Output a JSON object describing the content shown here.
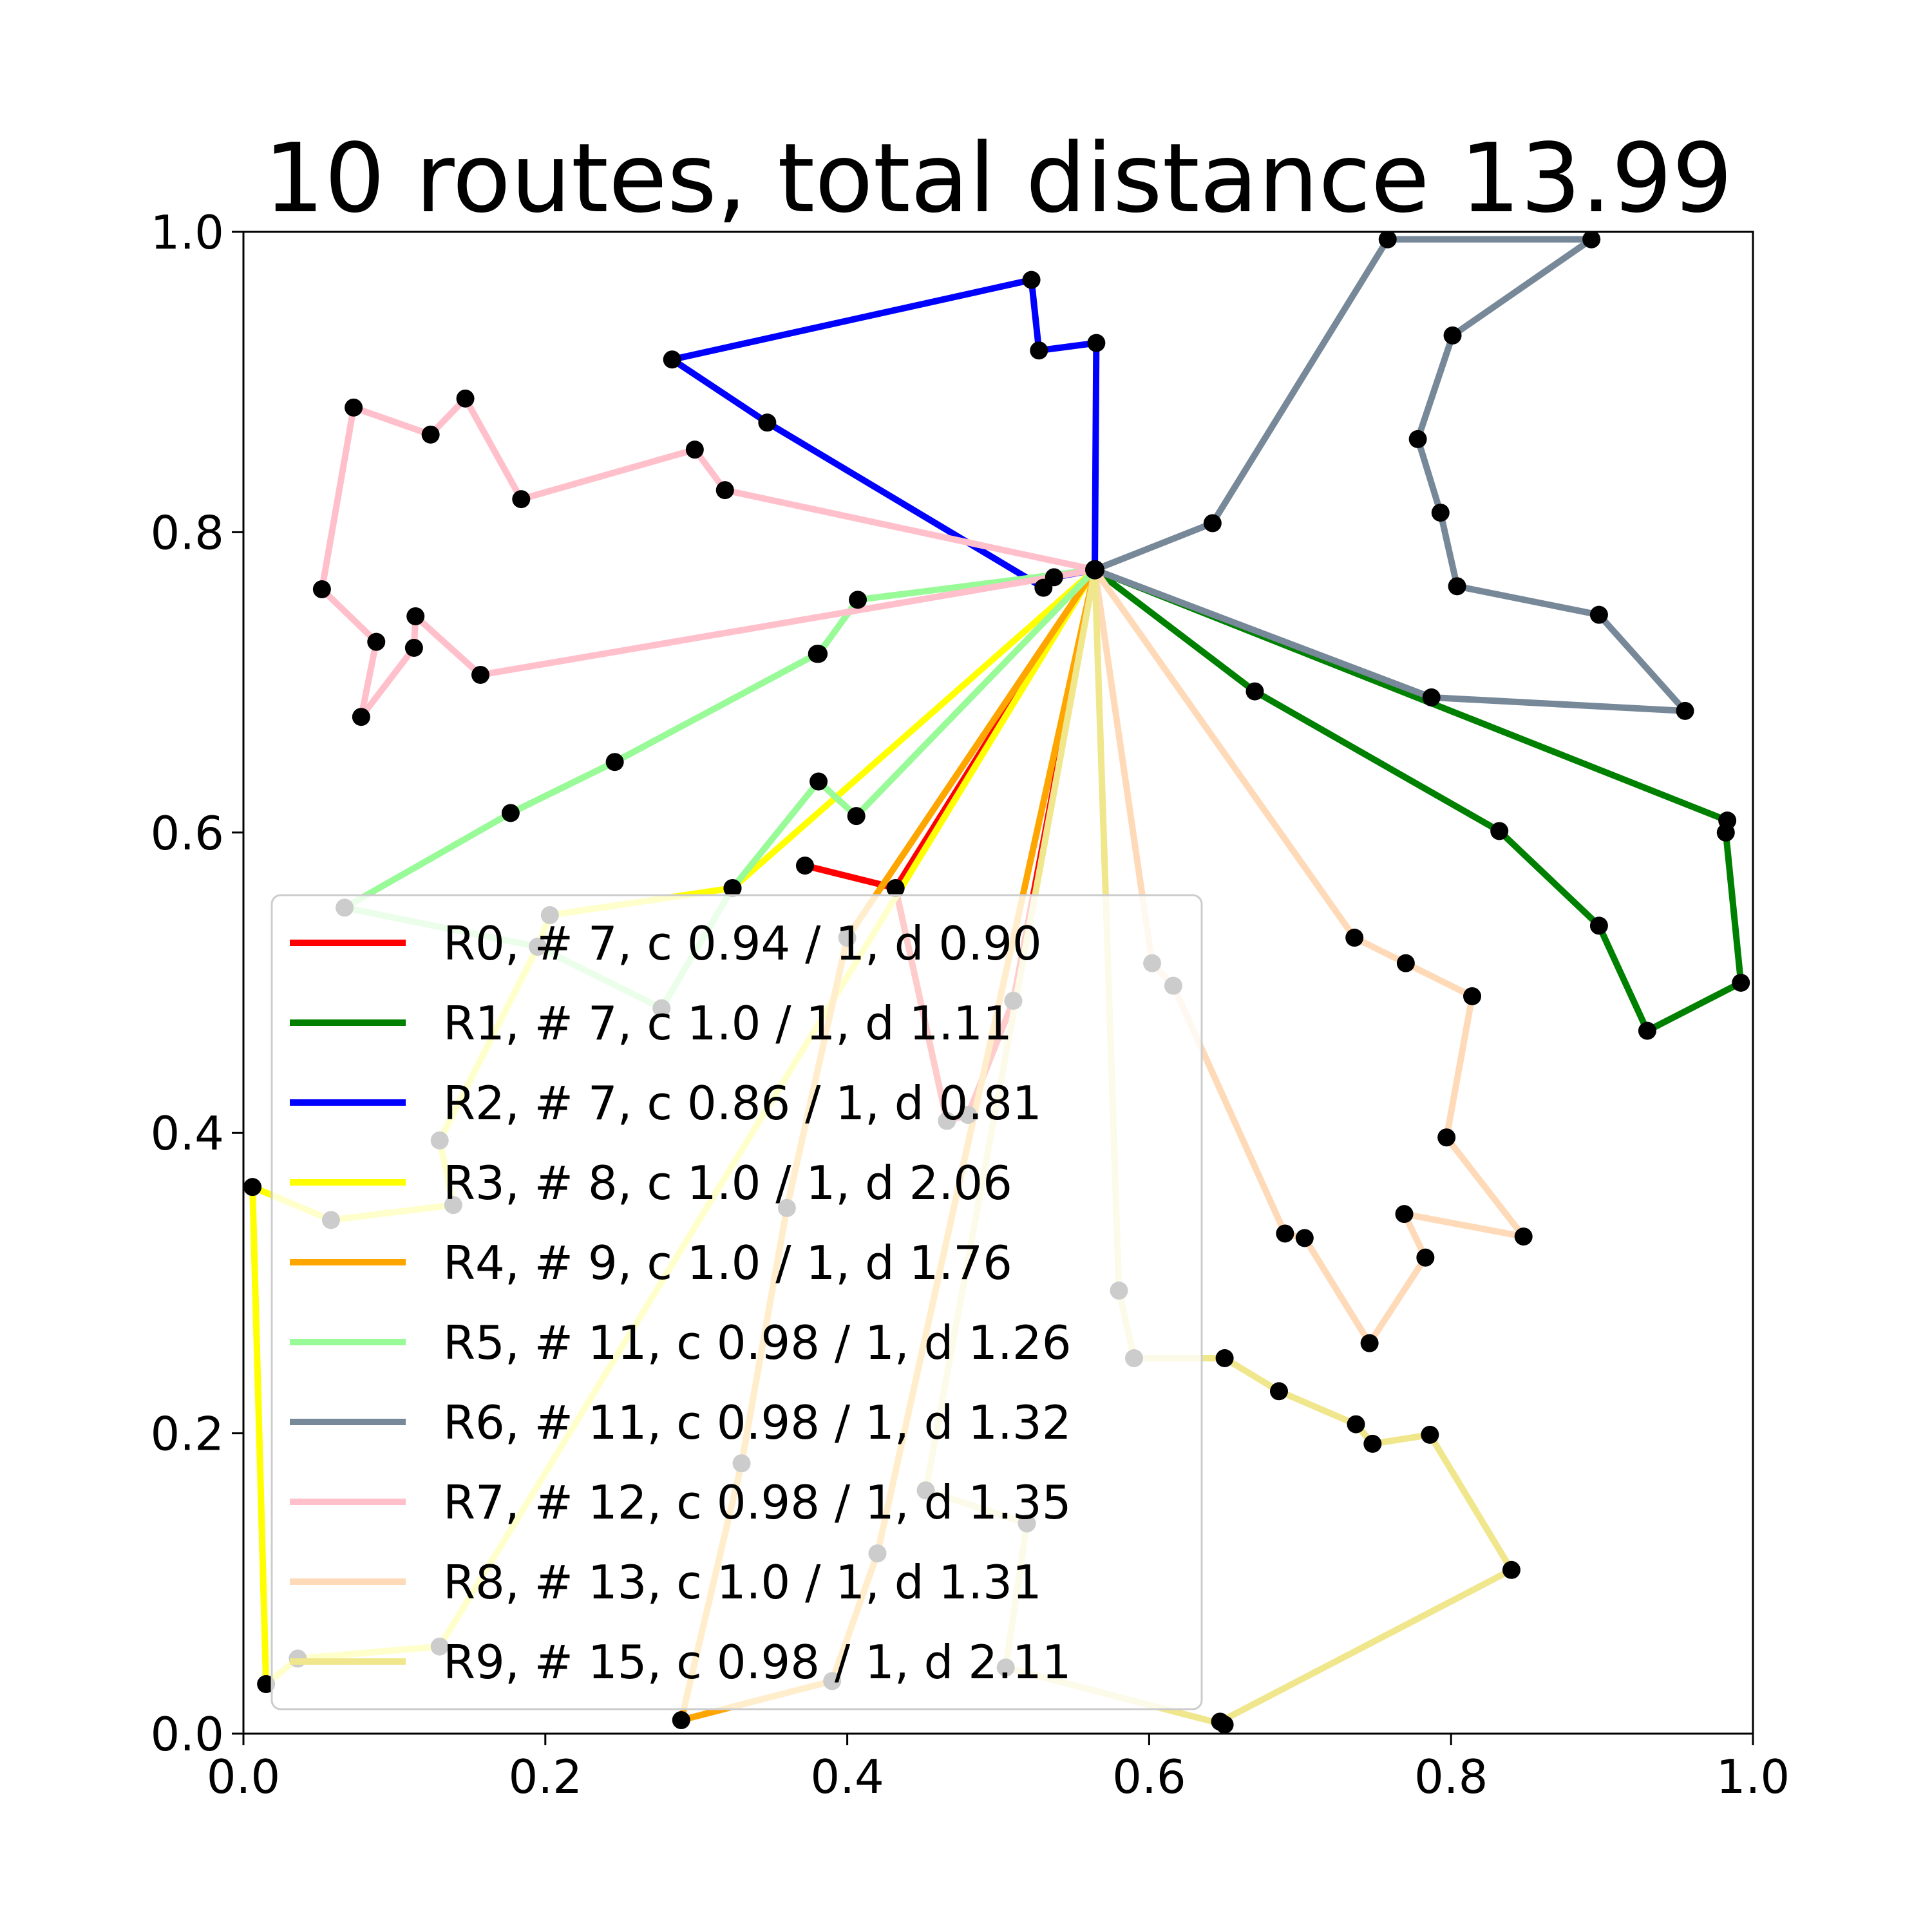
{
  "chart_data": {
    "type": "line",
    "title": "10 routes, total distance 13.99",
    "xlabel": "",
    "ylabel": "",
    "xlim": [
      0.0,
      1.0
    ],
    "ylim": [
      0.0,
      1.0
    ],
    "xticks": [
      "0.0",
      "0.2",
      "0.4",
      "0.6",
      "0.8",
      "1.0"
    ],
    "yticks": [
      "0.0",
      "0.2",
      "0.4",
      "0.6",
      "0.8",
      "1.0"
    ],
    "grid": false,
    "legend_position": "lower-left",
    "depot": [
      0.564,
      0.775
    ],
    "series": [
      {
        "name": "R0, # 7, c 0.94 / 1, d 0.90",
        "color": "#ff0000",
        "x": [
          0.564,
          0.432,
          0.372,
          0.432,
          0.466,
          0.48,
          0.51,
          0.564
        ],
        "y": [
          0.775,
          0.563,
          0.578,
          0.563,
          0.408,
          0.412,
          0.488,
          0.775
        ]
      },
      {
        "name": "R1, # 7, c 1.0 / 1, d 1.11",
        "color": "#008000",
        "x": [
          0.564,
          0.67,
          0.832,
          0.898,
          0.93,
          0.992,
          0.982,
          0.983,
          0.564
        ],
        "y": [
          0.775,
          0.694,
          0.601,
          0.538,
          0.468,
          0.5,
          0.6,
          0.608,
          0.775
        ]
      },
      {
        "name": "R2, # 7, c 0.86 / 1, d 0.81",
        "color": "#0000ff",
        "x": [
          0.564,
          0.537,
          0.53,
          0.347,
          0.284,
          0.522,
          0.527,
          0.565,
          0.564
        ],
        "y": [
          0.775,
          0.77,
          0.763,
          0.873,
          0.915,
          0.968,
          0.921,
          0.926,
          0.775
        ]
      },
      {
        "name": "R3, # 8, c 1.0 / 1, d 2.06",
        "color": "#ffff00",
        "x": [
          0.564,
          0.324,
          0.203,
          0.195,
          0.13,
          0.139,
          0.058,
          0.006,
          0.015,
          0.036,
          0.13,
          0.564
        ],
        "y": [
          0.775,
          0.563,
          0.545,
          0.524,
          0.395,
          0.352,
          0.342,
          0.364,
          0.033,
          0.05,
          0.058,
          0.775
        ]
      },
      {
        "name": "R4, # 9, c 1.0 / 1, d 1.76",
        "color": "#ffa500",
        "x": [
          0.564,
          0.4,
          0.36,
          0.33,
          0.29,
          0.39,
          0.42,
          0.564
        ],
        "y": [
          0.775,
          0.53,
          0.35,
          0.18,
          0.009,
          0.035,
          0.12,
          0.775
        ]
      },
      {
        "name": "R5, # 11, c 0.98 / 1, d 1.26",
        "color": "#98fb98",
        "x": [
          0.564,
          0.407,
          0.381,
          0.38,
          0.246,
          0.177,
          0.067,
          0.195,
          0.277,
          0.324,
          0.381,
          0.406,
          0.564
        ],
        "y": [
          0.775,
          0.755,
          0.719,
          0.719,
          0.647,
          0.613,
          0.55,
          0.524,
          0.483,
          0.563,
          0.634,
          0.611,
          0.775
        ]
      },
      {
        "name": "R6, # 11, c 0.98 / 1, d 1.32",
        "color": "#778899",
        "x": [
          0.564,
          0.642,
          0.758,
          0.893,
          0.801,
          0.778,
          0.793,
          0.804,
          0.898,
          0.955,
          0.787,
          0.564
        ],
        "y": [
          0.775,
          0.806,
          0.995,
          0.995,
          0.931,
          0.862,
          0.813,
          0.764,
          0.745,
          0.681,
          0.69,
          0.775
        ]
      },
      {
        "name": "R7, # 12, c 0.98 / 1, d 1.35",
        "color": "#ffc0cb",
        "x": [
          0.564,
          0.319,
          0.299,
          0.184,
          0.147,
          0.124,
          0.073,
          0.052,
          0.088,
          0.078,
          0.113,
          0.114,
          0.157,
          0.564
        ],
        "y": [
          0.775,
          0.828,
          0.855,
          0.822,
          0.889,
          0.865,
          0.883,
          0.762,
          0.727,
          0.677,
          0.723,
          0.744,
          0.705,
          0.775
        ]
      },
      {
        "name": "R8, # 13, c 1.0 / 1, d 1.31",
        "color": "#ffdab9",
        "x": [
          0.564,
          0.602,
          0.616,
          0.69,
          0.703,
          0.746,
          0.783,
          0.769,
          0.848,
          0.797,
          0.814,
          0.77,
          0.736,
          0.564
        ],
        "y": [
          0.775,
          0.513,
          0.498,
          0.333,
          0.33,
          0.26,
          0.317,
          0.346,
          0.331,
          0.397,
          0.491,
          0.513,
          0.53,
          0.775
        ]
      },
      {
        "name": "R9, # 15, c 0.98 / 1, d 2.11",
        "color": "#f0e68c",
        "x": [
          0.564,
          0.58,
          0.59,
          0.65,
          0.686,
          0.737,
          0.748,
          0.786,
          0.84,
          0.647,
          0.65,
          0.505,
          0.519,
          0.452,
          0.564
        ],
        "y": [
          0.775,
          0.295,
          0.25,
          0.25,
          0.228,
          0.206,
          0.193,
          0.199,
          0.109,
          0.008,
          0.006,
          0.044,
          0.14,
          0.162,
          0.775
        ]
      }
    ]
  }
}
